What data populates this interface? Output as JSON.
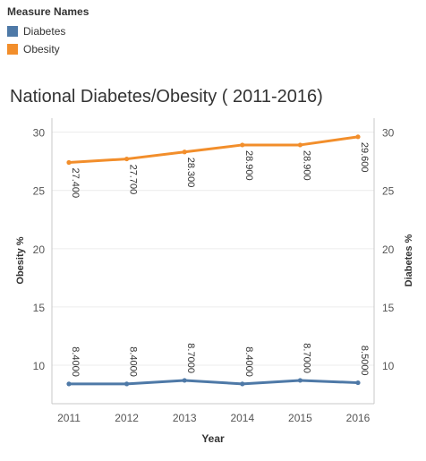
{
  "legend": {
    "title": "Measure Names",
    "items": [
      {
        "label": "Diabetes",
        "color": "#4e79a7"
      },
      {
        "label": "Obesity",
        "color": "#f28e2b"
      }
    ]
  },
  "chart_data": {
    "type": "line",
    "title": "National Diabetes/Obesity ( 2011-2016)",
    "xlabel": "Year",
    "ylabel_left": "Obesity %",
    "ylabel_right": "Diabetes %",
    "categories": [
      "2011",
      "2012",
      "2013",
      "2014",
      "2015",
      "2016"
    ],
    "ylim": [
      6.7,
      31.2
    ],
    "yticks": [
      10,
      15,
      20,
      25,
      30
    ],
    "grid": true,
    "legend_position": "top-left",
    "series": [
      {
        "name": "Obesity",
        "axis": "left",
        "color": "#f28e2b",
        "values": [
          27.4,
          27.7,
          28.3,
          28.9,
          28.9,
          29.6
        ],
        "labels": [
          "27.400",
          "27.700",
          "28.300",
          "28.900",
          "28.900",
          "29.600"
        ]
      },
      {
        "name": "Diabetes",
        "axis": "right",
        "color": "#4e79a7",
        "values": [
          8.4,
          8.4,
          8.7,
          8.4,
          8.7,
          8.5
        ],
        "labels": [
          "8.4000",
          "8.4000",
          "8.7000",
          "8.4000",
          "8.7000",
          "8.5000"
        ]
      }
    ]
  }
}
